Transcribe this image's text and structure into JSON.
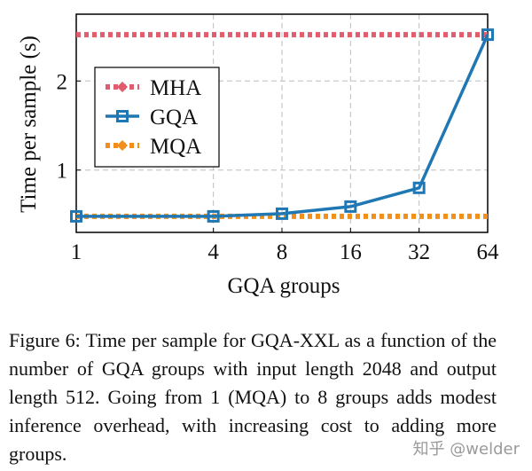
{
  "chart_data": {
    "type": "line",
    "xlabel": "GQA groups",
    "ylabel": "Time per sample (s)",
    "x_scale": "log2",
    "x_ticks": [
      1,
      4,
      8,
      16,
      32,
      64
    ],
    "y_ticks": [
      1,
      2
    ],
    "xlim": [
      1,
      64
    ],
    "ylim": [
      0.3,
      2.75
    ],
    "grid": true,
    "legend_position": "left",
    "series": [
      {
        "name": "MHA",
        "color": "#e05c6e",
        "style": "dotted-thick",
        "marker": "diamond",
        "x": [
          1,
          64
        ],
        "y": [
          2.52,
          2.52
        ]
      },
      {
        "name": "GQA",
        "color": "#1f77b4",
        "style": "solid",
        "marker": "square",
        "x": [
          1,
          4,
          8,
          16,
          32,
          64
        ],
        "y": [
          0.48,
          0.48,
          0.51,
          0.59,
          0.8,
          2.52
        ]
      },
      {
        "name": "MQA",
        "color": "#f28e1c",
        "style": "dotted-thick",
        "marker": "diamond",
        "x": [
          1,
          64
        ],
        "y": [
          0.48,
          0.48
        ]
      }
    ]
  },
  "caption": "Figure 6: Time per sample for GQA-XXL as a function of the number of GQA groups with input length 2048 and output length 512. Going from 1 (MQA) to 8 groups adds modest inference overhead, with increasing cost to adding more groups.",
  "watermark": "知乎 @welder"
}
